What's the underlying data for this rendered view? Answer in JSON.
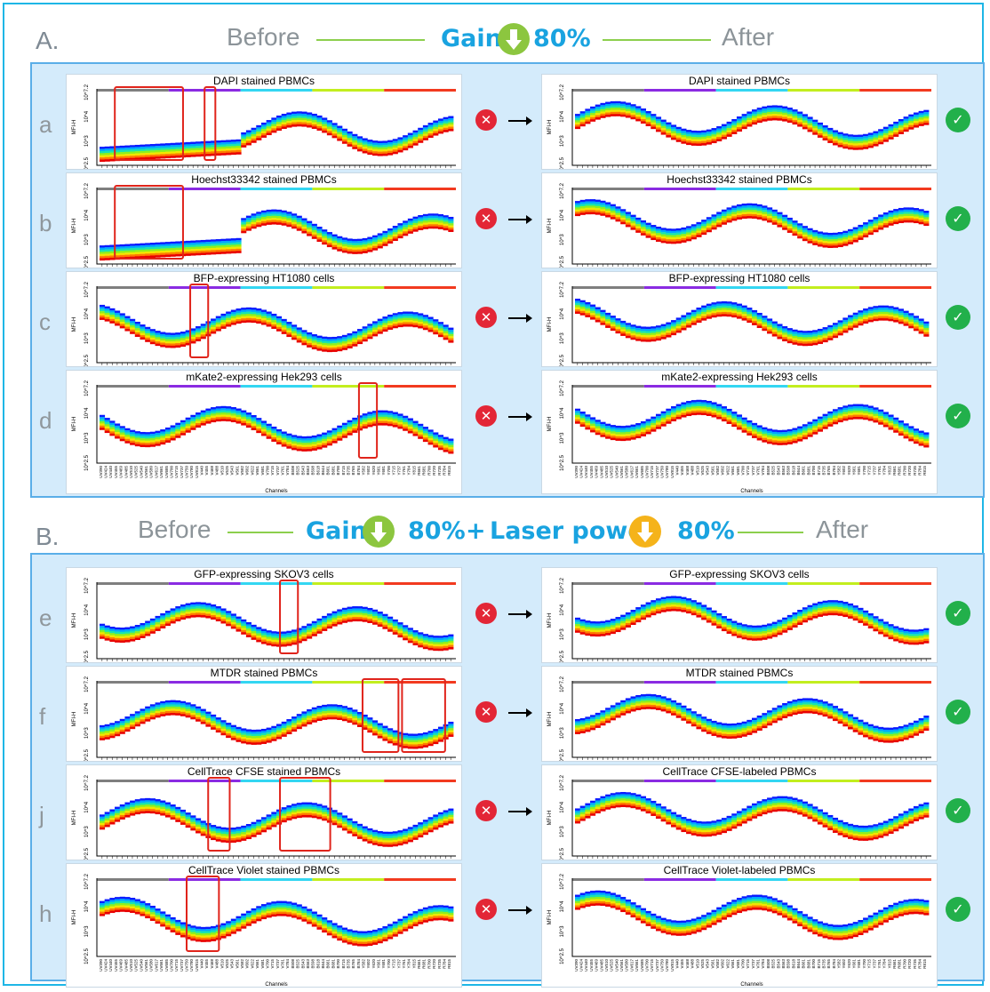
{
  "colors": {
    "frame": "#1eb6e6",
    "panel_bg": "#d4ebfb",
    "panel_border": "#5aaee8",
    "accent_blue": "#19a3e0",
    "gain_badge": "#8cc63f",
    "laser_badge": "#f5b31a",
    "error": "#e32636",
    "ok": "#22b04b",
    "highlight_box": "#e0241b",
    "laser_bars": [
      "#7f7f7f",
      "#8a2be2",
      "#33d6f2",
      "#c2ee1e",
      "#f23a1f"
    ]
  },
  "section_a": {
    "letter": "A.",
    "before": "Before",
    "gain": "Gain",
    "gain_pct": "80%",
    "after": "After"
  },
  "section_b": {
    "letter": "B.",
    "before": "Before",
    "gain": "Gain",
    "gain_pct": "80%",
    "plus": "+",
    "laser": "Laser power",
    "laser_pct": "80%",
    "after": "After"
  },
  "common": {
    "y_axis_label": "MFI-H",
    "y_ticks": [
      "10^2.5",
      "10^3",
      "10^4",
      "10^7.2"
    ],
    "x_axis_label": "Channels",
    "channels": [
      "UV390",
      "UV424",
      "UV440",
      "UV455",
      "UV469",
      "UV485",
      "UV510",
      "UV525",
      "UV540",
      "UV561",
      "UV580",
      "UV617",
      "UV661",
      "UV685",
      "UV700",
      "UV715",
      "UV737",
      "UV750",
      "UV780",
      "UV815",
      "V440",
      "V455",
      "V468",
      "V488",
      "V510",
      "V525",
      "V543",
      "V561",
      "V582",
      "V602",
      "V622",
      "V661",
      "V681",
      "V700",
      "V715",
      "V737",
      "V761",
      "V784",
      "B508",
      "B525",
      "B543",
      "B563",
      "B598",
      "B618",
      "B644",
      "B661",
      "B681",
      "B700",
      "B715",
      "B735",
      "B765",
      "B784",
      "Y582",
      "Y602",
      "Y620",
      "Y661",
      "Y681",
      "Y700",
      "Y715",
      "Y737",
      "Y761",
      "Y784",
      "Y815",
      "R661",
      "R681",
      "R700",
      "R720",
      "R735",
      "R784",
      "R815"
    ]
  },
  "rows": [
    {
      "letter": "a",
      "before_title": "DAPI stained PBMCs",
      "after_title": "DAPI stained PBMCs"
    },
    {
      "letter": "b",
      "before_title": "Hoechst33342 stained PBMCs",
      "after_title": "Hoechst33342 stained PBMCs"
    },
    {
      "letter": "c",
      "before_title": "BFP-expressing HT1080 cells",
      "after_title": "BFP-expressing HT1080 cells"
    },
    {
      "letter": "d",
      "before_title": "mKate2-expressing Hek293 cells",
      "after_title": "mKate2-expressing Hek293 cells"
    },
    {
      "letter": "e",
      "before_title": "GFP-expressing SKOV3 cells",
      "after_title": "GFP-expressing SKOV3 cells"
    },
    {
      "letter": "f",
      "before_title": "MTDR stained PBMCs",
      "after_title": "MTDR stained PBMCs"
    },
    {
      "letter": "j",
      "before_title": "CellTrace CFSE stained PBMCs",
      "after_title": "CellTrace CFSE-labeled PBMCs"
    },
    {
      "letter": "h",
      "before_title": "CellTrace Violet stained PBMCs",
      "after_title": "CellTrace Violet-labeled PBMCs"
    }
  ]
}
